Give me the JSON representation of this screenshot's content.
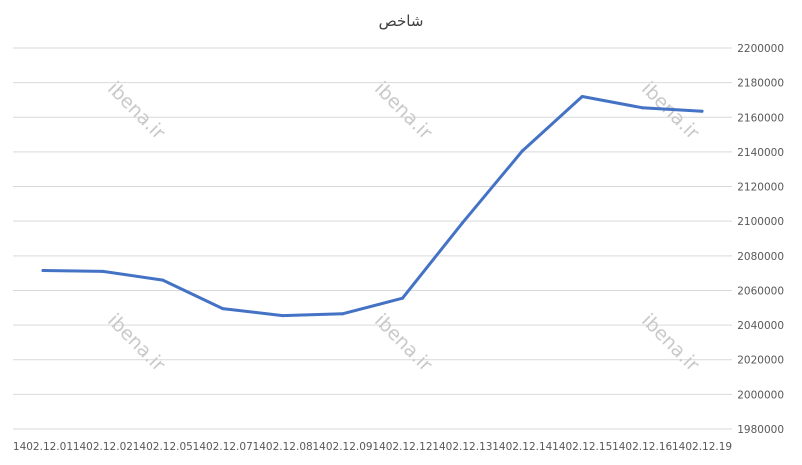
{
  "chart_data": {
    "type": "line",
    "title": "شاخص",
    "xlabel": "",
    "ylabel": "",
    "categories": [
      "1402.12.01",
      "1402.12.02",
      "1402.12.05",
      "1402.12.07",
      "1402.12.08",
      "1402.12.09",
      "1402.12.12",
      "1402.12.13",
      "1402.12.14",
      "1402.12.15",
      "1402.12.16",
      "1402.12.19"
    ],
    "series": [
      {
        "values": [
          2071500,
          2071000,
          2066000,
          2049500,
          2045500,
          2046500,
          2055500,
          2099000,
          2140500,
          2172000,
          2165500,
          2163500
        ]
      }
    ],
    "ylim": [
      1980000,
      2200000
    ],
    "yticks": [
      1980000,
      2000000,
      2020000,
      2040000,
      2060000,
      2080000,
      2100000,
      2120000,
      2140000,
      2160000,
      2180000,
      2200000
    ],
    "grid": true,
    "y_axis_side": "right",
    "line_color": "#4472c4",
    "watermark": "ibena.ir"
  }
}
